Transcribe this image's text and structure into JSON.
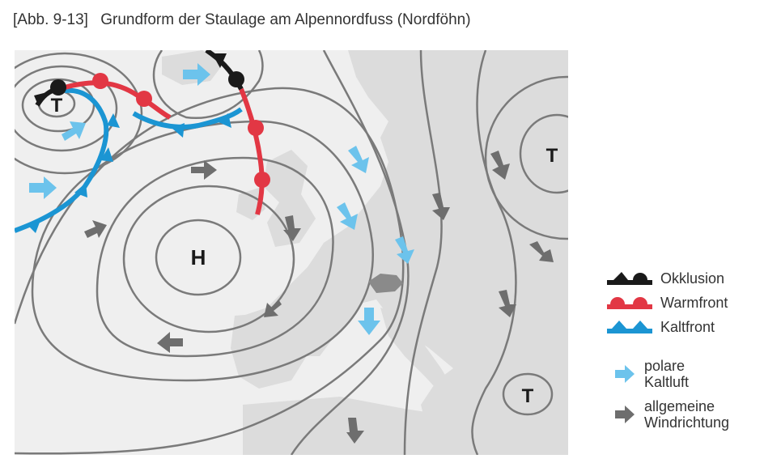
{
  "caption": {
    "figure_label": "[Abb. 9-13]",
    "title": "Grundform der Staulage am Alpennordfuss (Nordföhn)"
  },
  "pressure_labels": {
    "low_northwest": "T",
    "low_east": "T",
    "low_southeast": "T",
    "high_west": "H"
  },
  "legend": {
    "occlusion": "Okklusion",
    "warm_front": "Warmfront",
    "cold_front": "Kaltfront",
    "polar_air_line1": "polare",
    "polar_air_line2": "Kaltluft",
    "wind_line1": "allgemeine",
    "wind_line2": "Windrichtung"
  },
  "colors": {
    "occlusion": "#1a1a1a",
    "warm_front": "#e23744",
    "cold_front": "#1b95d3",
    "polar_air_arrow": "#6cc3ec",
    "wind_arrow": "#6e6e6e",
    "isobar": "#7a7a7a",
    "land": "#dcdcdc",
    "sea": "#efefef"
  }
}
